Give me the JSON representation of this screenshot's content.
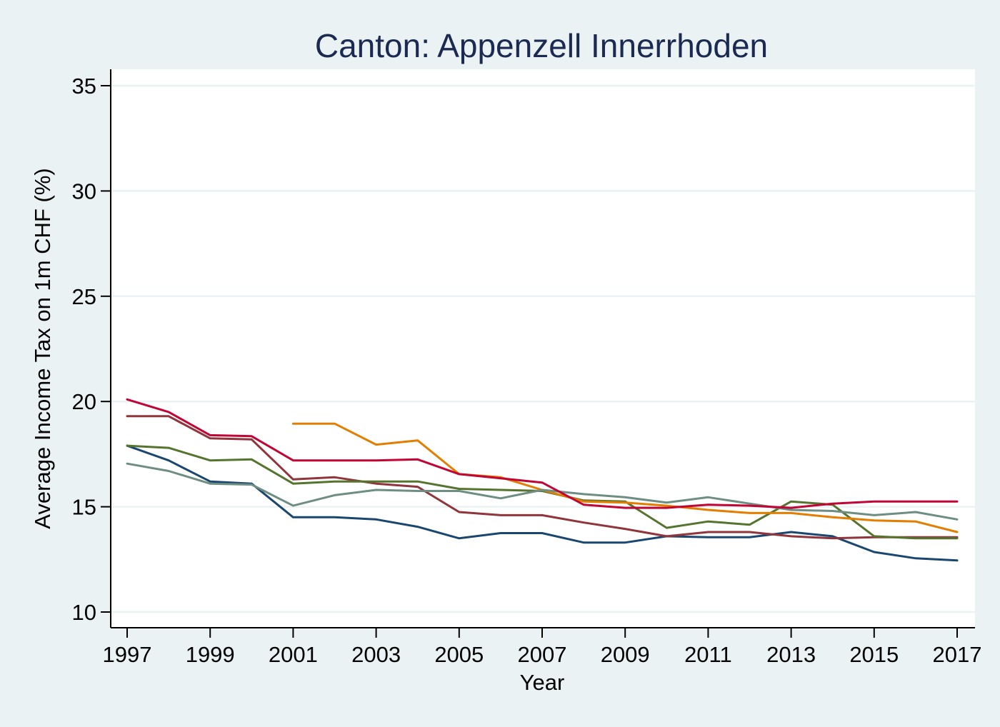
{
  "chart_data": {
    "type": "line",
    "title": "Canton: Appenzell Innerrhoden",
    "xlabel": "Year",
    "ylabel": "Average Income Tax on 1m CHF (%)",
    "xlim": [
      1997,
      2017
    ],
    "ylim": [
      10,
      35
    ],
    "x_ticks": [
      1997,
      1999,
      2001,
      2003,
      2005,
      2007,
      2009,
      2011,
      2013,
      2015,
      2017
    ],
    "y_ticks": [
      10,
      15,
      20,
      25,
      30,
      35
    ],
    "grid": true,
    "legend": "none",
    "x": [
      1997,
      1998,
      1999,
      2000,
      2001,
      2002,
      2003,
      2004,
      2005,
      2006,
      2007,
      2008,
      2009,
      2010,
      2011,
      2012,
      2013,
      2014,
      2015,
      2016,
      2017
    ],
    "series": [
      {
        "color": "#1a476f",
        "values": [
          17.9,
          17.2,
          16.2,
          16.1,
          14.5,
          14.5,
          14.4,
          14.05,
          13.5,
          13.75,
          13.75,
          13.3,
          13.3,
          13.6,
          13.55,
          13.55,
          13.8,
          13.6,
          12.85,
          12.55,
          12.45
        ]
      },
      {
        "color": "#90353b",
        "values": [
          19.3,
          19.3,
          18.25,
          18.2,
          16.3,
          16.4,
          16.1,
          15.95,
          14.75,
          14.6,
          14.6,
          14.25,
          13.95,
          13.6,
          13.8,
          13.8,
          13.6,
          13.5,
          13.55,
          13.55,
          13.55
        ]
      },
      {
        "color": "#55752f",
        "values": [
          17.9,
          17.8,
          17.2,
          17.25,
          16.1,
          16.2,
          16.2,
          16.2,
          15.85,
          15.8,
          15.75,
          15.3,
          15.25,
          14.0,
          14.3,
          14.15,
          15.25,
          15.1,
          13.6,
          13.5,
          13.5
        ]
      },
      {
        "color": "#e37e00",
        "values": [
          null,
          null,
          null,
          null,
          18.95,
          18.95,
          17.95,
          18.15,
          16.55,
          16.4,
          15.8,
          15.25,
          15.2,
          15.05,
          14.85,
          14.7,
          14.7,
          14.5,
          14.35,
          14.3,
          13.8
        ]
      },
      {
        "color": "#6e8e84",
        "values": [
          17.05,
          16.7,
          16.1,
          16.05,
          15.05,
          15.55,
          15.8,
          15.75,
          15.75,
          15.4,
          15.8,
          15.6,
          15.45,
          15.2,
          15.45,
          15.15,
          14.85,
          14.8,
          14.6,
          14.75,
          14.4
        ]
      },
      {
        "color": "#c10534",
        "values": [
          20.1,
          19.5,
          18.4,
          18.35,
          17.2,
          17.2,
          17.2,
          17.25,
          16.55,
          16.35,
          16.15,
          15.1,
          14.95,
          14.95,
          15.1,
          15.05,
          14.95,
          15.15,
          15.25,
          15.25,
          15.25
        ]
      }
    ]
  }
}
